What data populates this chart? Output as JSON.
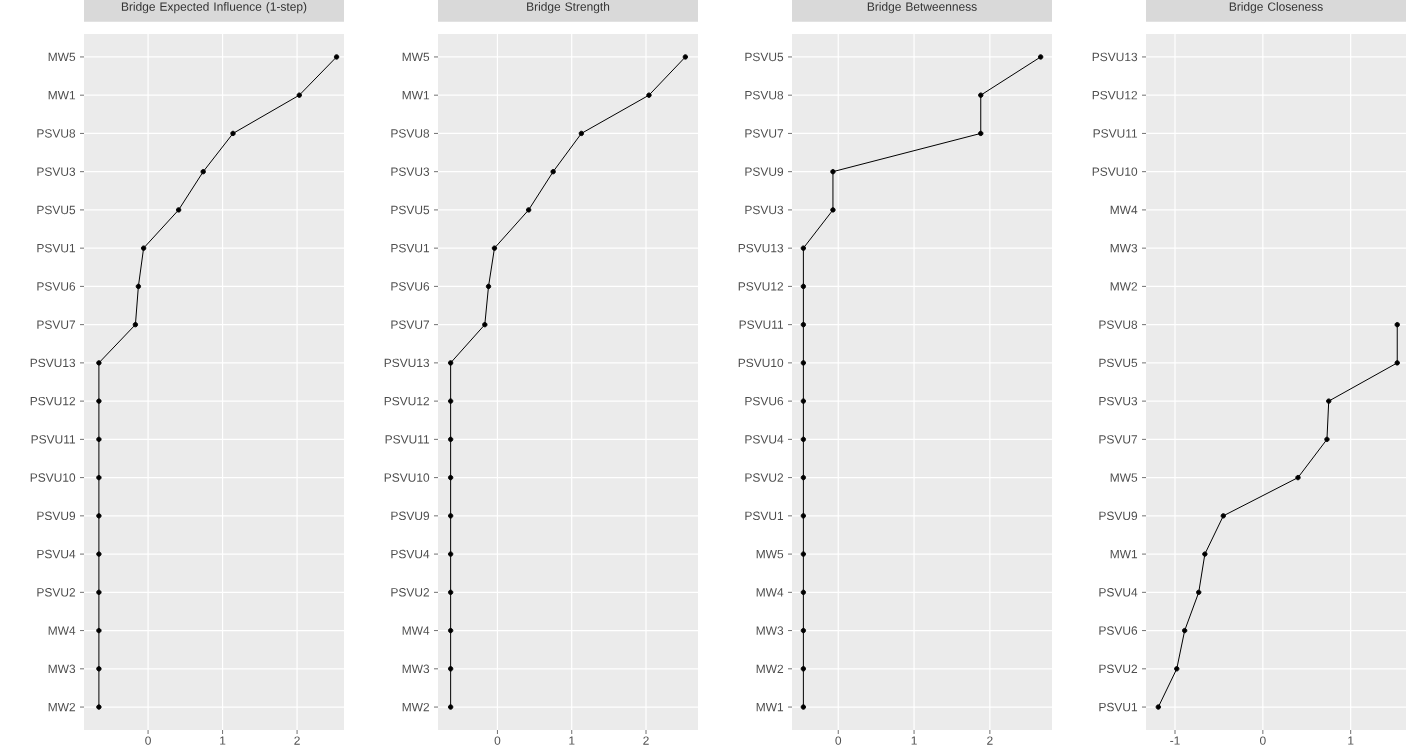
{
  "chart_data": [
    {
      "type": "line",
      "orientation": "horizontal",
      "title": "Bridge Expected Influence (1-step)",
      "categories": [
        "MW5",
        "MW1",
        "PSVU8",
        "PSVU3",
        "PSVU5",
        "PSVU1",
        "PSVU6",
        "PSVU7",
        "PSVU13",
        "PSVU12",
        "PSVU11",
        "PSVU10",
        "PSVU9",
        "PSVU4",
        "PSVU2",
        "MW4",
        "MW3",
        "MW2"
      ],
      "series": [
        {
          "color": "#000000",
          "values": [
            2.53,
            2.03,
            1.14,
            0.74,
            0.41,
            -0.06,
            -0.13,
            -0.17,
            -0.66,
            -0.66,
            -0.66,
            -0.66,
            -0.66,
            -0.66,
            -0.66,
            -0.66,
            -0.66,
            -0.66
          ]
        }
      ],
      "xlim": [
        -0.86,
        2.63
      ],
      "xticks": [
        0,
        1,
        2
      ],
      "grid": true,
      "marker": "circle"
    },
    {
      "type": "line",
      "orientation": "horizontal",
      "title": "Bridge Strength",
      "categories": [
        "MW5",
        "MW1",
        "PSVU8",
        "PSVU3",
        "PSVU5",
        "PSVU1",
        "PSVU6",
        "PSVU7",
        "PSVU13",
        "PSVU12",
        "PSVU11",
        "PSVU10",
        "PSVU9",
        "PSVU4",
        "PSVU2",
        "MW4",
        "MW3",
        "MW2"
      ],
      "series": [
        {
          "color": "#000000",
          "values": [
            2.53,
            2.04,
            1.13,
            0.75,
            0.42,
            -0.04,
            -0.12,
            -0.17,
            -0.63,
            -0.63,
            -0.63,
            -0.63,
            -0.63,
            -0.63,
            -0.63,
            -0.63,
            -0.63,
            -0.63
          ]
        }
      ],
      "xlim": [
        -0.8,
        2.7
      ],
      "xticks": [
        0,
        1,
        2
      ],
      "grid": true,
      "marker": "circle"
    },
    {
      "type": "line",
      "orientation": "horizontal",
      "title": "Bridge Betweenness",
      "categories": [
        "PSVU5",
        "PSVU8",
        "PSVU7",
        "PSVU9",
        "PSVU3",
        "PSVU13",
        "PSVU12",
        "PSVU11",
        "PSVU10",
        "PSVU6",
        "PSVU4",
        "PSVU2",
        "PSVU1",
        "MW5",
        "MW4",
        "MW3",
        "MW2",
        "MW1"
      ],
      "series": [
        {
          "color": "#000000",
          "values": [
            2.67,
            1.88,
            1.88,
            -0.07,
            -0.07,
            -0.46,
            -0.46,
            -0.46,
            -0.46,
            -0.46,
            -0.46,
            -0.46,
            -0.46,
            -0.46,
            -0.46,
            -0.46,
            -0.46,
            -0.46
          ]
        }
      ],
      "xlim": [
        -0.61,
        2.82
      ],
      "xticks": [
        0,
        1,
        2
      ],
      "grid": true,
      "marker": "circle"
    },
    {
      "type": "line",
      "orientation": "horizontal",
      "title": "Bridge Closeness",
      "categories": [
        "PSVU13",
        "PSVU12",
        "PSVU11",
        "PSVU10",
        "MW4",
        "MW3",
        "MW2",
        "PSVU8",
        "PSVU5",
        "PSVU3",
        "PSVU7",
        "MW5",
        "PSVU9",
        "MW1",
        "PSVU4",
        "PSVU6",
        "PSVU2",
        "PSVU1"
      ],
      "series": [
        {
          "color": "#000000",
          "values": [
            null,
            null,
            null,
            null,
            null,
            null,
            null,
            1.53,
            1.53,
            0.75,
            0.73,
            0.4,
            -0.45,
            -0.66,
            -0.73,
            -0.89,
            -0.98,
            -1.19
          ]
        }
      ],
      "xlim": [
        -1.33,
        1.63
      ],
      "xticks": [
        -1,
        0,
        1
      ],
      "grid": true,
      "marker": "circle"
    }
  ]
}
